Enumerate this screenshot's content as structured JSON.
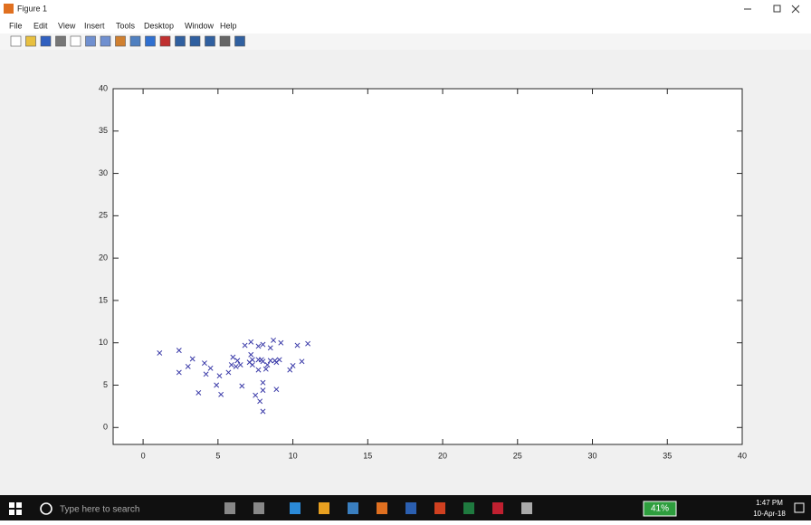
{
  "window": {
    "title": "Figure 1",
    "menu": [
      "File",
      "Edit",
      "View",
      "Insert",
      "Tools",
      "Desktop",
      "Window",
      "Help"
    ]
  },
  "chart_data": {
    "type": "scatter",
    "marker": "x",
    "color": "#3a3aa8",
    "x": [
      1.1,
      2.4,
      2.4,
      3.0,
      3.3,
      3.7,
      4.1,
      4.2,
      4.5,
      4.9,
      5.1,
      5.2,
      5.7,
      5.9,
      6.0,
      6.2,
      6.3,
      6.5,
      6.6,
      6.8,
      7.1,
      7.2,
      7.2,
      7.3,
      7.3,
      7.5,
      7.7,
      7.7,
      7.7,
      7.8,
      7.9,
      8.0,
      8.0,
      8.0,
      8.0,
      8.0,
      8.2,
      8.3,
      8.5,
      8.5,
      8.7,
      8.8,
      8.9,
      8.9,
      9.2,
      9.1,
      9.8,
      10.0,
      10.3,
      10.6,
      11.0
    ],
    "values": [
      8.8,
      9.1,
      6.5,
      7.2,
      8.1,
      4.1,
      7.6,
      6.3,
      7.0,
      5.0,
      6.1,
      3.9,
      6.5,
      7.4,
      8.3,
      7.2,
      7.9,
      7.4,
      4.9,
      9.7,
      7.7,
      10.1,
      8.6,
      8.0,
      7.4,
      3.8,
      9.6,
      8.0,
      6.8,
      3.1,
      8.0,
      9.8,
      7.8,
      5.3,
      4.4,
      1.9,
      6.9,
      7.4,
      9.4,
      7.9,
      10.3,
      7.9,
      4.5,
      7.7,
      10.0,
      8.0,
      6.8,
      7.3,
      9.7,
      7.8,
      9.9
    ],
    "xlim": [
      -2,
      40
    ],
    "ylim": [
      -2,
      40
    ],
    "xticks": [
      0,
      5,
      10,
      15,
      20,
      25,
      30,
      35,
      40
    ],
    "yticks": [
      0,
      5,
      10,
      15,
      20,
      25,
      30,
      35,
      40
    ]
  },
  "taskbar": {
    "search": "Type here to search",
    "battery": "41%",
    "time": "1:47 PM",
    "date": "10-Apr-18"
  }
}
